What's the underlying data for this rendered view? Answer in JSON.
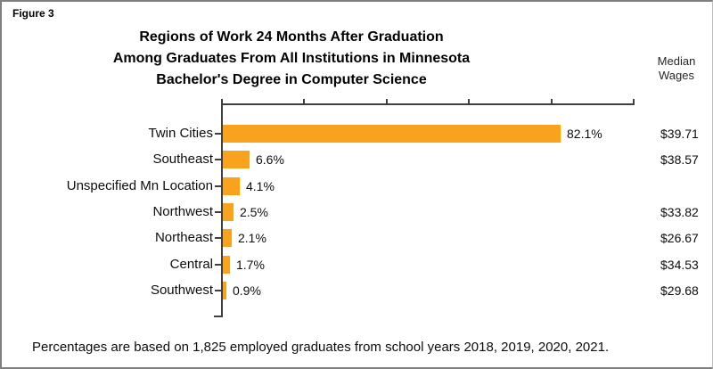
{
  "figure_label": "Figure 3",
  "title": {
    "line1": "Regions of Work 24 Months After Graduation",
    "line2": "Among Graduates From All Institutions in Minnesota",
    "line3": "Bachelor's Degree in Computer Science"
  },
  "wage_header": {
    "line1": "Median",
    "line2": "Wages"
  },
  "footnote": "Percentages are based on 1,825 employed graduates from school years 2018, 2019, 2020, 2021.",
  "colors": {
    "bar": "#F8A21D",
    "axis": "#3F3F3F",
    "text": "#0D0D0D",
    "frame_border": "#7F7F7F"
  },
  "chart_data": {
    "type": "bar",
    "orientation": "horizontal",
    "title": "Regions of Work 24 Months After Graduation Among Graduates From All Institutions in Minnesota Bachelor's Degree in Computer Science",
    "categories": [
      "Twin Cities",
      "Southeast",
      "Unspecified Mn Location",
      "Northwest",
      "Northeast",
      "Central",
      "Southwest"
    ],
    "values": [
      82.1,
      6.6,
      4.1,
      2.5,
      2.1,
      1.7,
      0.9
    ],
    "value_labels": [
      "82.1%",
      "6.6%",
      "4.1%",
      "2.5%",
      "2.1%",
      "1.7%",
      "0.9%"
    ],
    "median_wages": [
      "$39.71",
      "$38.57",
      "",
      "$33.82",
      "$26.67",
      "$34.53",
      "$29.68"
    ],
    "xlabel": "",
    "ylabel": "",
    "xlim": [
      0,
      100
    ],
    "xticks": [
      0,
      20,
      40,
      60,
      80,
      100
    ],
    "xtick_labels_visible": false,
    "grid": false,
    "legend": false,
    "bar_color": "#F8A21D"
  }
}
